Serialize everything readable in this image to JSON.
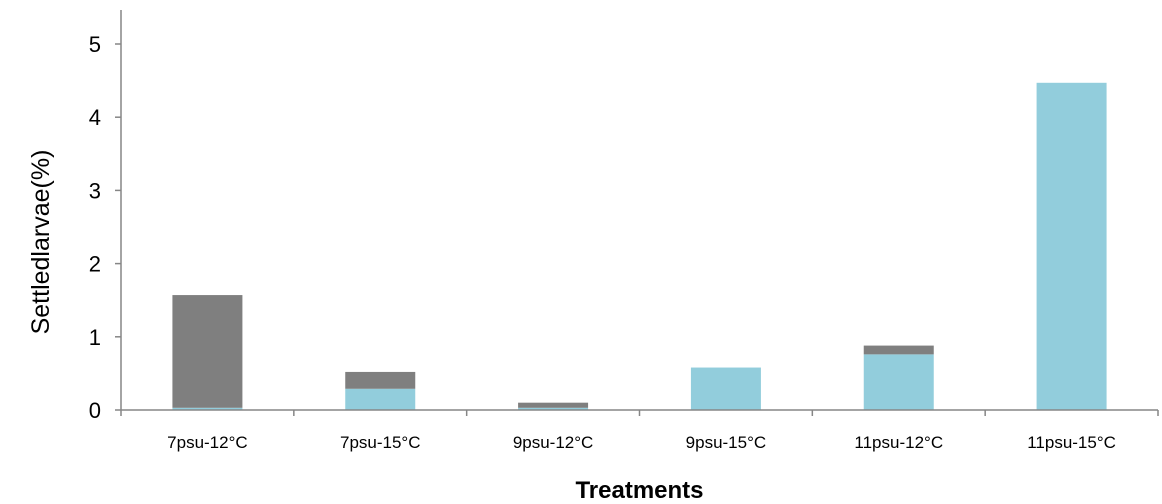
{
  "chart_data": {
    "type": "bar",
    "stacked": true,
    "title": "",
    "xlabel": "Treatments",
    "ylabel": "Settled\u0003larvae\u0003(%)",
    "categories": [
      "7psu\u0003‐\u000312°C\u0003",
      "7psu\u0003‐\u000315°C\u0003",
      "9psu\u0003‐\u000312°C\u0003",
      "9psu\u0003‐\u000315°C\u0003",
      "11psu\u0003‐\u000312°C",
      "11psu\u0003‐\u000315°C\u0003"
    ],
    "ylim": [
      0,
      5
    ],
    "yticks": [
      "0",
      "1",
      "2",
      "3",
      "4",
      "5"
    ],
    "grid": false,
    "legend": "none",
    "series": [
      {
        "color": "#92cddc",
        "values": [
          0.03,
          0.29,
          0.03,
          0.58,
          0.76,
          4.47
        ]
      },
      {
        "color": "#7f7f7f",
        "values": [
          1.54,
          0.23,
          0.07,
          0.0,
          0.12,
          0.0
        ]
      }
    ]
  }
}
